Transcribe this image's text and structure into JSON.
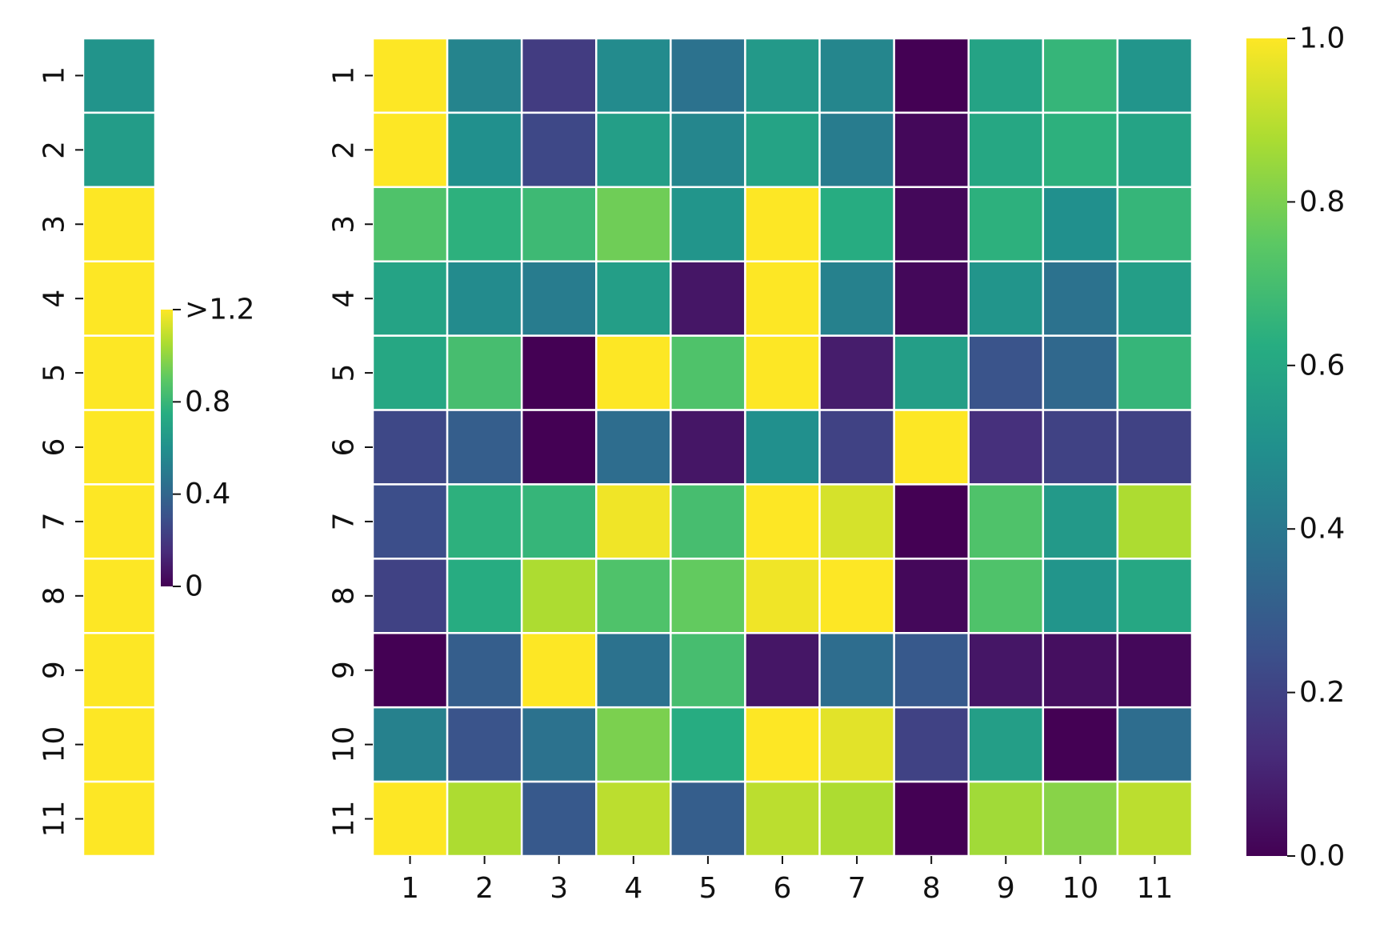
{
  "chart_data": [
    {
      "type": "heatmap",
      "name": "left-strip",
      "rows": [
        "1",
        "2",
        "3",
        "4",
        "5",
        "6",
        "7",
        "8",
        "9",
        "10",
        "11"
      ],
      "columns": [
        ""
      ],
      "values": [
        [
          0.62
        ],
        [
          0.66
        ],
        [
          1.2
        ],
        [
          1.2
        ],
        [
          1.2
        ],
        [
          1.2
        ],
        [
          1.2
        ],
        [
          1.2
        ],
        [
          1.2
        ],
        [
          1.2
        ],
        [
          1.2
        ]
      ],
      "colorbar": {
        "range": [
          0,
          1.2
        ],
        "ticks": [
          0,
          0.4,
          0.8,
          1.2
        ],
        "tick_labels": [
          "0",
          "0.4",
          "0.8",
          ">1.2"
        ]
      }
    },
    {
      "type": "heatmap",
      "name": "main-matrix",
      "rows": [
        "1",
        "2",
        "3",
        "4",
        "5",
        "6",
        "7",
        "8",
        "9",
        "10",
        "11"
      ],
      "columns": [
        "1",
        "2",
        "3",
        "4",
        "5",
        "6",
        "7",
        "8",
        "9",
        "10",
        "11"
      ],
      "values": [
        [
          1.0,
          0.45,
          0.18,
          0.48,
          0.38,
          0.54,
          0.46,
          0.0,
          0.58,
          0.66,
          0.52
        ],
        [
          1.0,
          0.5,
          0.22,
          0.56,
          0.46,
          0.58,
          0.42,
          0.02,
          0.6,
          0.64,
          0.58
        ],
        [
          0.72,
          0.64,
          0.68,
          0.78,
          0.52,
          1.0,
          0.62,
          0.02,
          0.64,
          0.5,
          0.66
        ],
        [
          0.58,
          0.48,
          0.42,
          0.56,
          0.06,
          1.0,
          0.44,
          0.02,
          0.52,
          0.38,
          0.56
        ],
        [
          0.6,
          0.7,
          0.0,
          1.0,
          0.72,
          1.0,
          0.08,
          0.56,
          0.26,
          0.34,
          0.66
        ],
        [
          0.22,
          0.3,
          0.0,
          0.36,
          0.06,
          0.5,
          0.2,
          1.0,
          0.14,
          0.2,
          0.2
        ],
        [
          0.24,
          0.64,
          0.66,
          0.98,
          0.7,
          1.0,
          0.94,
          0.0,
          0.72,
          0.54,
          0.88
        ],
        [
          0.2,
          0.62,
          0.88,
          0.72,
          0.76,
          0.98,
          1.0,
          0.02,
          0.72,
          0.52,
          0.6
        ],
        [
          0.0,
          0.3,
          1.0,
          0.38,
          0.7,
          0.06,
          0.36,
          0.28,
          0.06,
          0.04,
          0.02
        ],
        [
          0.44,
          0.26,
          0.38,
          0.8,
          0.62,
          1.0,
          0.96,
          0.2,
          0.56,
          0.0,
          0.36
        ],
        [
          1.0,
          0.88,
          0.28,
          0.9,
          0.3,
          0.9,
          0.88,
          0.0,
          0.86,
          0.82,
          0.9
        ]
      ],
      "colorbar": {
        "range": [
          0,
          1
        ],
        "ticks": [
          0,
          0.2,
          0.4,
          0.6,
          0.8,
          1.0
        ],
        "tick_labels": [
          "0.0",
          "0.2",
          "0.4",
          "0.6",
          "0.8",
          "1.0"
        ]
      }
    }
  ],
  "colormap": "viridis"
}
